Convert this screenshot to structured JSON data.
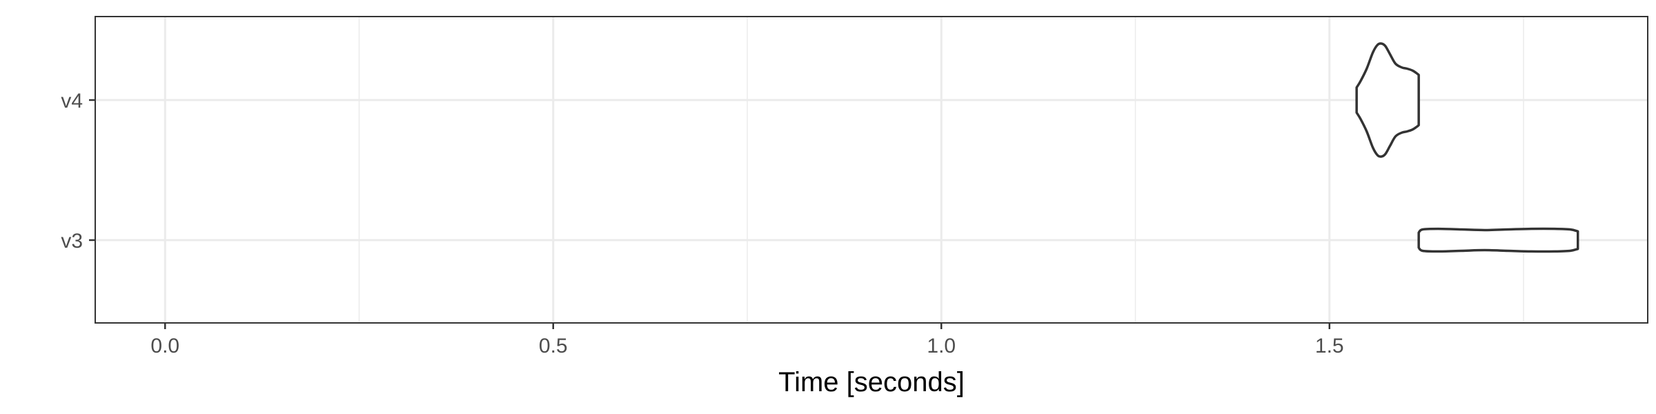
{
  "chart_data": {
    "type": "violin",
    "title": "",
    "xlabel": "Time [seconds]",
    "ylabel": "",
    "xlim": [
      -0.09,
      1.91
    ],
    "x_ticks": [
      0.0,
      0.5,
      1.0,
      1.5
    ],
    "x_tick_labels": [
      "0.0",
      "0.5",
      "1.0",
      "1.5"
    ],
    "x_minor_ticks": [
      0.25,
      0.75,
      1.25,
      1.75
    ],
    "categories": [
      "v3",
      "v4"
    ],
    "grid": true,
    "colors": {
      "outline": "#333333",
      "fill": "#ffffff",
      "grid": "#ebebeb",
      "panel_border": "#333333"
    },
    "violins": [
      {
        "category": "v4",
        "min": 1.535,
        "max": 1.615,
        "density_profile": [
          [
            1.535,
            0.2
          ],
          [
            1.54,
            0.3
          ],
          [
            1.548,
            0.5
          ],
          [
            1.556,
            0.76
          ],
          [
            1.562,
            0.88
          ],
          [
            1.567,
            0.9
          ],
          [
            1.572,
            0.86
          ],
          [
            1.578,
            0.73
          ],
          [
            1.585,
            0.58
          ],
          [
            1.593,
            0.52
          ],
          [
            1.6,
            0.5
          ],
          [
            1.607,
            0.47
          ],
          [
            1.612,
            0.43
          ],
          [
            1.615,
            0.4
          ]
        ]
      },
      {
        "category": "v3",
        "min": 1.615,
        "max": 1.82,
        "density_profile": [
          [
            1.615,
            0.12
          ],
          [
            1.62,
            0.17
          ],
          [
            1.64,
            0.18
          ],
          [
            1.67,
            0.17
          ],
          [
            1.7,
            0.16
          ],
          [
            1.73,
            0.17
          ],
          [
            1.76,
            0.18
          ],
          [
            1.79,
            0.18
          ],
          [
            1.81,
            0.17
          ],
          [
            1.82,
            0.14
          ]
        ]
      }
    ]
  }
}
